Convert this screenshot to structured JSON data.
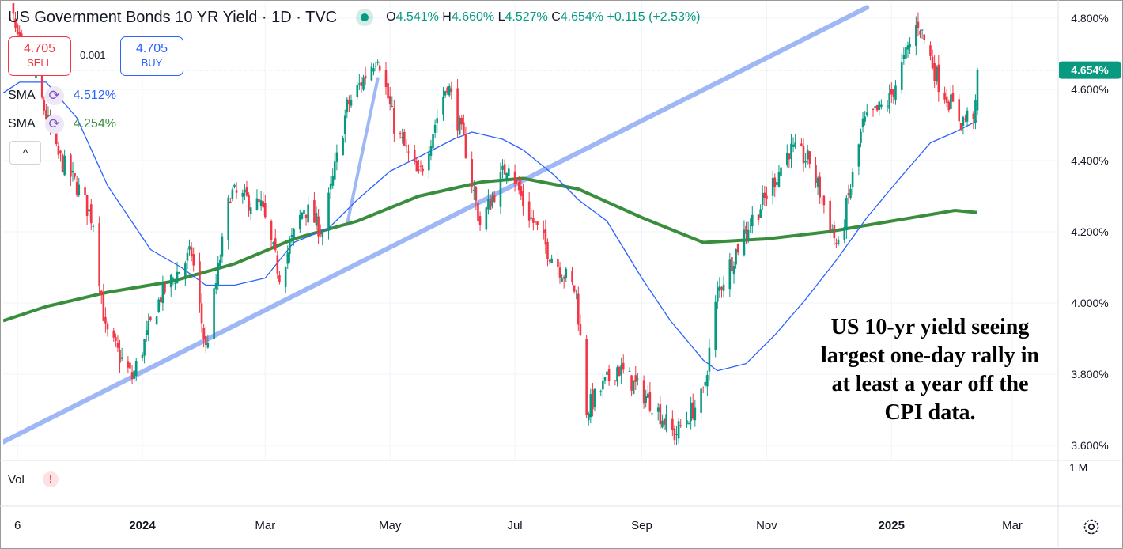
{
  "header": {
    "title": "US Government Bonds 10 YR Yield · 1D · TVC",
    "ohlc": {
      "o_label": "O",
      "o": "4.541%",
      "h_label": "H",
      "h": "4.660%",
      "l_label": "L",
      "l": "4.527%",
      "c_label": "C",
      "c": "4.654%",
      "change": "+0.115 (+2.53%)"
    }
  },
  "trade": {
    "sell_price": "4.705",
    "sell_label": "SELL",
    "spread": "0.001",
    "buy_price": "4.705",
    "buy_label": "BUY"
  },
  "indicators": [
    {
      "name": "SMA",
      "value": "4.512%",
      "color": "#2962ff"
    },
    {
      "name": "SMA",
      "value": "4.254%",
      "color": "#388e3c"
    }
  ],
  "volume": {
    "label": "Vol",
    "warn": "!"
  },
  "collapse_glyph": "^",
  "annotation": "US 10-yr yield seeing largest one-day rally in at least a year off the CPI data.",
  "colors": {
    "up": "#089981",
    "down": "#f23645",
    "sma_fast": "#2962ff",
    "sma_slow": "#388e3c",
    "trendline": "#9fb7f5",
    "last_price_bg": "#089981"
  },
  "chart_data": {
    "type": "candlestick",
    "title": "US Government Bonds 10 YR Yield · 1D · TVC",
    "y_axis_unit": "%",
    "y_ticks": [
      "4.800%",
      "4.600%",
      "4.400%",
      "4.200%",
      "4.000%",
      "3.800%",
      "3.600%"
    ],
    "y_tick_values": [
      4.8,
      4.6,
      4.4,
      4.2,
      4.0,
      3.8,
      3.6
    ],
    "ylim": [
      3.558,
      4.842
    ],
    "x_ticks": [
      "6",
      "2024",
      "Mar",
      "May",
      "Jul",
      "Sep",
      "Nov",
      "2025",
      "Mar"
    ],
    "x_tick_dates": [
      "2023-11-01",
      "2024-01-01",
      "2024-03-01",
      "2024-05-01",
      "2024-07-01",
      "2024-09-01",
      "2024-11-01",
      "2025-01-01",
      "2025-03-01"
    ],
    "date_range": [
      "2023-10-25",
      "2025-02-12"
    ],
    "last_price": "4.654%",
    "volume_axis_label": "1 M",
    "close_path": [
      {
        "date": "2023-10-25",
        "close": 4.95
      },
      {
        "date": "2023-11-01",
        "close": 4.73
      },
      {
        "date": "2023-11-10",
        "close": 4.63
      },
      {
        "date": "2023-11-20",
        "close": 4.42
      },
      {
        "date": "2023-11-30",
        "close": 4.33
      },
      {
        "date": "2023-12-08",
        "close": 4.23
      },
      {
        "date": "2023-12-14",
        "close": 3.92
      },
      {
        "date": "2023-12-27",
        "close": 3.79
      },
      {
        "date": "2024-01-10",
        "close": 4.02
      },
      {
        "date": "2024-01-25",
        "close": 4.14
      },
      {
        "date": "2024-02-01",
        "close": 3.87
      },
      {
        "date": "2024-02-13",
        "close": 4.31
      },
      {
        "date": "2024-02-28",
        "close": 4.27
      },
      {
        "date": "2024-03-08",
        "close": 4.08
      },
      {
        "date": "2024-03-20",
        "close": 4.27
      },
      {
        "date": "2024-03-29",
        "close": 4.2
      },
      {
        "date": "2024-04-10",
        "close": 4.55
      },
      {
        "date": "2024-04-25",
        "close": 4.7
      },
      {
        "date": "2024-05-03",
        "close": 4.5
      },
      {
        "date": "2024-05-15",
        "close": 4.35
      },
      {
        "date": "2024-05-29",
        "close": 4.62
      },
      {
        "date": "2024-06-07",
        "close": 4.43
      },
      {
        "date": "2024-06-14",
        "close": 4.22
      },
      {
        "date": "2024-06-28",
        "close": 4.4
      },
      {
        "date": "2024-07-05",
        "close": 4.28
      },
      {
        "date": "2024-07-17",
        "close": 4.15
      },
      {
        "date": "2024-07-31",
        "close": 4.03
      },
      {
        "date": "2024-08-05",
        "close": 3.7
      },
      {
        "date": "2024-08-20",
        "close": 3.82
      },
      {
        "date": "2024-09-06",
        "close": 3.72
      },
      {
        "date": "2024-09-17",
        "close": 3.63
      },
      {
        "date": "2024-10-01",
        "close": 3.74
      },
      {
        "date": "2024-10-08",
        "close": 4.03
      },
      {
        "date": "2024-10-22",
        "close": 4.21
      },
      {
        "date": "2024-10-31",
        "close": 4.29
      },
      {
        "date": "2024-11-12",
        "close": 4.43
      },
      {
        "date": "2024-11-22",
        "close": 4.4
      },
      {
        "date": "2024-12-06",
        "close": 4.15
      },
      {
        "date": "2024-12-18",
        "close": 4.5
      },
      {
        "date": "2024-12-31",
        "close": 4.57
      },
      {
        "date": "2025-01-14",
        "close": 4.79
      },
      {
        "date": "2025-01-24",
        "close": 4.62
      },
      {
        "date": "2025-02-04",
        "close": 4.51
      },
      {
        "date": "2025-02-11",
        "close": 4.54
      },
      {
        "date": "2025-02-12",
        "close": 4.654
      }
    ],
    "sma_fast_path": [
      {
        "date": "2023-10-25",
        "value": 4.59
      },
      {
        "date": "2023-11-02",
        "value": 4.62
      },
      {
        "date": "2023-11-15",
        "value": 4.62
      },
      {
        "date": "2023-11-30",
        "value": 4.52
      },
      {
        "date": "2023-12-15",
        "value": 4.33
      },
      {
        "date": "2024-01-05",
        "value": 4.15
      },
      {
        "date": "2024-01-20",
        "value": 4.1
      },
      {
        "date": "2024-02-01",
        "value": 4.05
      },
      {
        "date": "2024-02-15",
        "value": 4.05
      },
      {
        "date": "2024-03-01",
        "value": 4.07
      },
      {
        "date": "2024-03-15",
        "value": 4.17
      },
      {
        "date": "2024-04-01",
        "value": 4.21
      },
      {
        "date": "2024-04-15",
        "value": 4.29
      },
      {
        "date": "2024-05-01",
        "value": 4.37
      },
      {
        "date": "2024-05-15",
        "value": 4.41
      },
      {
        "date": "2024-06-01",
        "value": 4.46
      },
      {
        "date": "2024-06-10",
        "value": 4.48
      },
      {
        "date": "2024-06-25",
        "value": 4.46
      },
      {
        "date": "2024-07-05",
        "value": 4.43
      },
      {
        "date": "2024-07-20",
        "value": 4.36
      },
      {
        "date": "2024-08-01",
        "value": 4.29
      },
      {
        "date": "2024-08-15",
        "value": 4.23
      },
      {
        "date": "2024-09-01",
        "value": 4.07
      },
      {
        "date": "2024-09-15",
        "value": 3.95
      },
      {
        "date": "2024-10-01",
        "value": 3.84
      },
      {
        "date": "2024-10-08",
        "value": 3.81
      },
      {
        "date": "2024-10-22",
        "value": 3.83
      },
      {
        "date": "2024-11-05",
        "value": 3.91
      },
      {
        "date": "2024-11-20",
        "value": 4.01
      },
      {
        "date": "2024-12-05",
        "value": 4.12
      },
      {
        "date": "2024-12-20",
        "value": 4.24
      },
      {
        "date": "2025-01-05",
        "value": 4.35
      },
      {
        "date": "2025-01-20",
        "value": 4.45
      },
      {
        "date": "2025-02-01",
        "value": 4.48
      },
      {
        "date": "2025-02-12",
        "value": 4.512
      }
    ],
    "sma_slow_path": [
      {
        "date": "2023-10-25",
        "value": 3.95
      },
      {
        "date": "2023-11-15",
        "value": 3.99
      },
      {
        "date": "2023-12-15",
        "value": 4.03
      },
      {
        "date": "2024-01-15",
        "value": 4.06
      },
      {
        "date": "2024-02-15",
        "value": 4.11
      },
      {
        "date": "2024-03-15",
        "value": 4.18
      },
      {
        "date": "2024-04-15",
        "value": 4.23
      },
      {
        "date": "2024-05-15",
        "value": 4.3
      },
      {
        "date": "2024-06-15",
        "value": 4.34
      },
      {
        "date": "2024-07-05",
        "value": 4.35
      },
      {
        "date": "2024-08-01",
        "value": 4.32
      },
      {
        "date": "2024-09-01",
        "value": 4.24
      },
      {
        "date": "2024-10-01",
        "value": 4.17
      },
      {
        "date": "2024-11-01",
        "value": 4.18
      },
      {
        "date": "2024-12-01",
        "value": 4.2
      },
      {
        "date": "2025-01-01",
        "value": 4.23
      },
      {
        "date": "2025-02-01",
        "value": 4.26
      },
      {
        "date": "2025-02-12",
        "value": 4.254
      }
    ],
    "trendlines": [
      {
        "points": [
          {
            "date": "2023-10-25",
            "value": 3.61
          },
          {
            "date": "2024-12-20",
            "value": 4.83
          }
        ]
      },
      {
        "points": [
          {
            "date": "2024-04-10",
            "value": 4.22
          },
          {
            "date": "2024-04-25",
            "value": 4.63
          }
        ]
      }
    ]
  }
}
